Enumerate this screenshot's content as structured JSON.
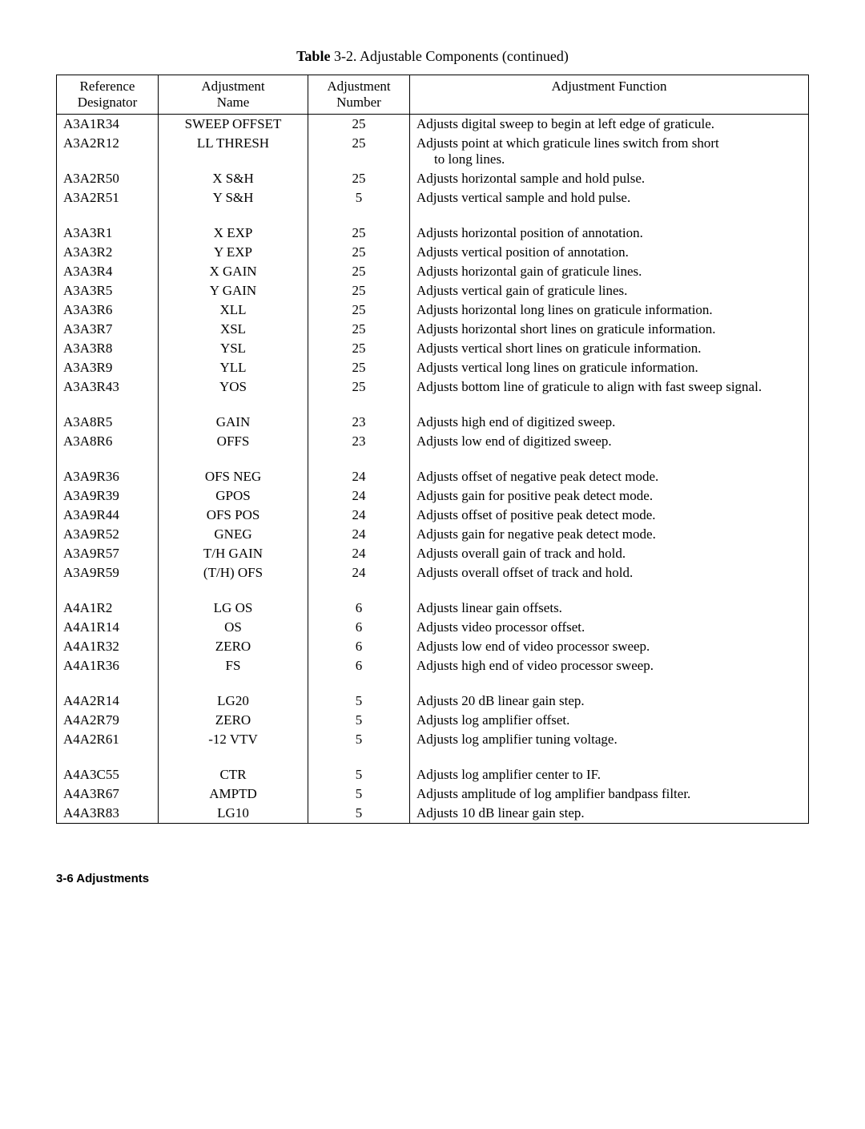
{
  "caption_bold": "Table",
  "caption_rest": " 3-2. Adjustable Components (continued)",
  "headers": {
    "ref1": "Reference",
    "ref2": "Designator",
    "name1": "Adjustment",
    "name2": "Name",
    "num1": "Adjustment",
    "num2": "Number",
    "func": "Adjustment Function"
  },
  "rows": [
    {
      "ref": "A3A1R34",
      "name": "SWEEP OFFSET",
      "num": "25",
      "func": "Adjusts digital sweep to begin at left edge of graticule."
    },
    {
      "ref": "A3A2R12",
      "name": "LL THRESH",
      "num": "25",
      "func": "Adjusts point at which graticule lines switch from short",
      "func_indent": "to long lines."
    },
    {
      "ref": "A3A2R50",
      "name": "X S&H",
      "num": "25",
      "func": "Adjusts horizontal sample and hold pulse."
    },
    {
      "ref": "A3A2R51",
      "name": "Y S&H",
      "num": "5",
      "func": "Adjusts vertical sample and hold pulse."
    },
    {
      "spacer": true
    },
    {
      "ref": "A3A3R1",
      "name": "X EXP",
      "num": "25",
      "func": "Adjusts horizontal position of annotation."
    },
    {
      "ref": "A3A3R2",
      "name": "Y EXP",
      "num": "25",
      "func": "Adjusts vertical position of annotation."
    },
    {
      "ref": "A3A3R4",
      "name": "X GAIN",
      "num": "25",
      "func": "Adjusts horizontal gain of graticule lines."
    },
    {
      "ref": "A3A3R5",
      "name": "Y GAIN",
      "num": "25",
      "func": "Adjusts vertical gain of graticule lines."
    },
    {
      "ref": "A3A3R6",
      "name": "XLL",
      "num": "25",
      "func": "Adjusts horizontal long lines on graticule information."
    },
    {
      "ref": "A3A3R7",
      "name": "XSL",
      "num": "25",
      "func": "Adjusts horizontal short lines on graticule information."
    },
    {
      "ref": "A3A3R8",
      "name": "YSL",
      "num": "25",
      "func": "Adjusts vertical short lines on graticule information."
    },
    {
      "ref": "A3A3R9",
      "name": "YLL",
      "num": "25",
      "func": "Adjusts vertical long lines on graticule information."
    },
    {
      "ref": "A3A3R43",
      "name": "YOS",
      "num": "25",
      "func": "Adjusts bottom line of graticule to align with fast sweep signal."
    },
    {
      "spacer": true
    },
    {
      "ref": "A3A8R5",
      "name": "GAIN",
      "num": "23",
      "func": "Adjusts high end of digitized sweep."
    },
    {
      "ref": "A3A8R6",
      "name": "OFFS",
      "num": "23",
      "func": "Adjusts low end of digitized sweep."
    },
    {
      "spacer": true
    },
    {
      "ref": "A3A9R36",
      "name": "OFS NEG",
      "num": "24",
      "func": "Adjusts offset of negative peak detect mode."
    },
    {
      "ref": "A3A9R39",
      "name": "GPOS",
      "num": "24",
      "func": "Adjusts gain for positive peak detect mode."
    },
    {
      "ref": "A3A9R44",
      "name": "OFS POS",
      "num": "24",
      "func": "Adjusts offset of positive peak detect mode."
    },
    {
      "ref": "A3A9R52",
      "name": "GNEG",
      "num": "24",
      "func": "Adjusts gain for negative peak detect mode."
    },
    {
      "ref": "A3A9R57",
      "name": "T/H GAIN",
      "num": "24",
      "func": "Adjusts overall gain of track and hold."
    },
    {
      "ref": "A3A9R59",
      "name": "(T/H) OFS",
      "num": "24",
      "func": "Adjusts overall offset of track and hold."
    },
    {
      "spacer": true
    },
    {
      "ref": "A4A1R2",
      "name": "LG OS",
      "num": "6",
      "func": "Adjusts linear gain offsets."
    },
    {
      "ref": "A4A1R14",
      "name": "OS",
      "num": "6",
      "func": "Adjusts video processor offset."
    },
    {
      "ref": "A4A1R32",
      "name": "ZERO",
      "num": "6",
      "func": "Adjusts low end of video processor sweep."
    },
    {
      "ref": "A4A1R36",
      "name": "FS",
      "num": "6",
      "func": "Adjusts high end of video processor sweep."
    },
    {
      "spacer": true
    },
    {
      "ref": "A4A2R14",
      "name": "LG20",
      "num": "5",
      "func": "Adjusts 20 dB linear gain step."
    },
    {
      "ref": "A4A2R79",
      "name": "ZERO",
      "num": "5",
      "func": "Adjusts log amplifier offset."
    },
    {
      "ref": "A4A2R61",
      "name": "-12 VTV",
      "num": "5",
      "func": "Adjusts log amplifier tuning voltage."
    },
    {
      "spacer": true
    },
    {
      "ref": "A4A3C55",
      "name": "CTR",
      "num": "5",
      "func": "Adjusts log amplifier center to IF."
    },
    {
      "ref": "A4A3R67",
      "name": "AMPTD",
      "num": "5",
      "func": "Adjusts amplitude of log amplifier bandpass filter."
    },
    {
      "ref": "A4A3R83",
      "name": "LG10",
      "num": "5",
      "func": "Adjusts 10 dB linear gain step."
    }
  ],
  "footer": "3-6  Adjustments"
}
